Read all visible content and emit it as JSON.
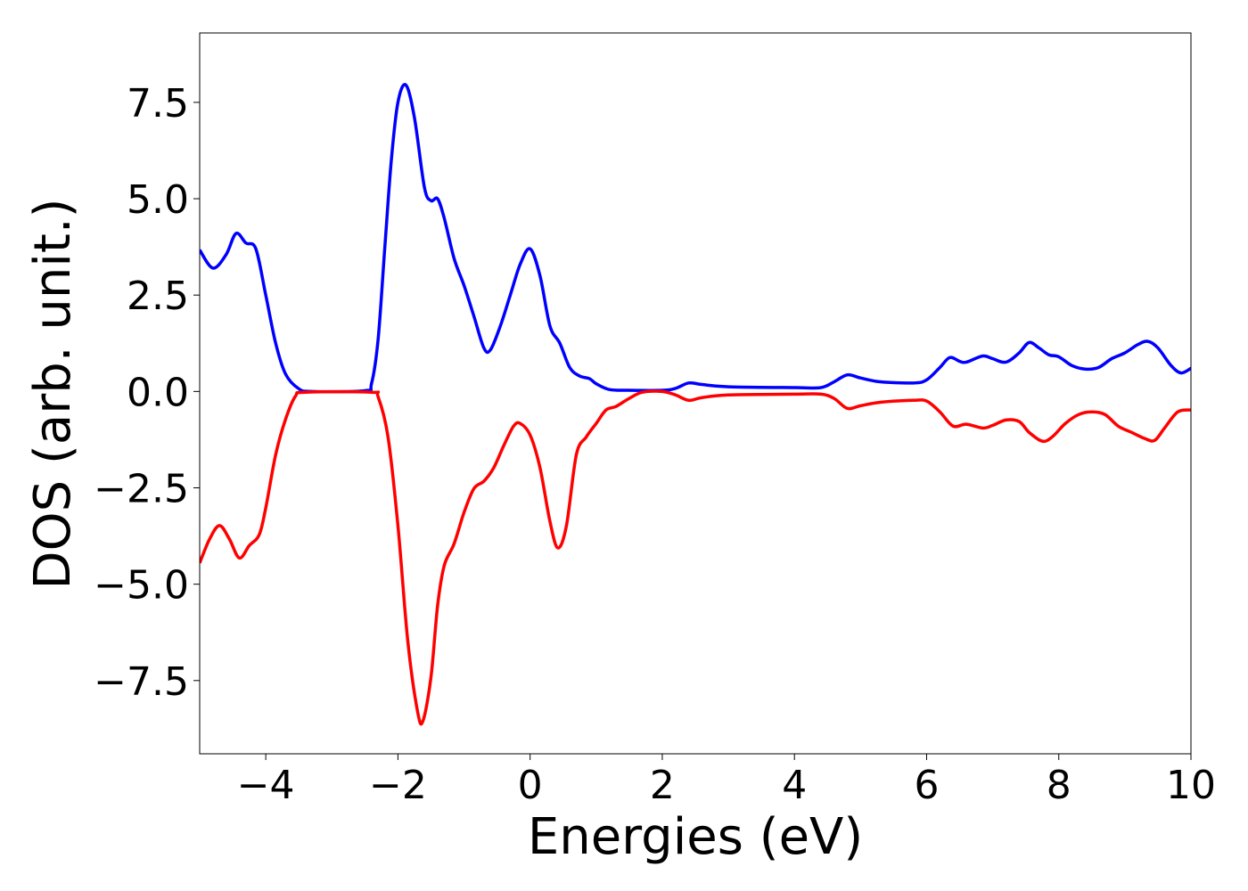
{
  "chart_data": {
    "type": "line",
    "xlabel": "Energies (eV)",
    "ylabel": "DOS (arb. unit.)",
    "xlim": [
      -5,
      10
    ],
    "ylim": [
      -9.4,
      9.3
    ],
    "xticks": [
      {
        "value": -4,
        "label": "−4"
      },
      {
        "value": -2,
        "label": "−2"
      },
      0,
      2,
      4,
      6,
      8,
      10
    ],
    "yticks": [
      {
        "value": -7.5,
        "label": "−7.5"
      },
      {
        "value": -5,
        "label": "−5.0"
      },
      {
        "value": -2.5,
        "label": "−2.5"
      },
      {
        "value": 0,
        "label": "0.0"
      },
      2.5,
      {
        "value": 5,
        "label": "5.0"
      },
      7.5
    ],
    "grid": false,
    "series": [
      {
        "color": "#0000ff",
        "x": [
          -5,
          -4.8,
          -4.6,
          -4.45,
          -4.3,
          -4.15,
          -4.0,
          -3.85,
          -3.7,
          -3.5,
          -3.3,
          -2.5,
          -2.4,
          -2.3,
          -2.2,
          -2.1,
          -2.0,
          -1.88,
          -1.75,
          -1.6,
          -1.5,
          -1.4,
          -1.3,
          -1.15,
          -1.0,
          -0.85,
          -0.7,
          -0.6,
          -0.45,
          -0.3,
          -0.15,
          0.0,
          0.15,
          0.3,
          0.45,
          0.6,
          0.75,
          0.9,
          1.0,
          1.2,
          1.5,
          2.0,
          2.2,
          2.4,
          2.6,
          3.0,
          4.0,
          4.4,
          4.6,
          4.8,
          5.0,
          5.3,
          5.8,
          6.0,
          6.2,
          6.35,
          6.5,
          6.6,
          6.85,
          7.0,
          7.2,
          7.4,
          7.55,
          7.7,
          7.85,
          8.0,
          8.2,
          8.4,
          8.6,
          8.8,
          9.0,
          9.2,
          9.35,
          9.5,
          9.7,
          9.85,
          10.0
        ],
        "values": [
          3.67,
          3.2,
          3.55,
          4.1,
          3.85,
          3.7,
          2.5,
          1.25,
          0.45,
          0.07,
          0,
          0.02,
          0.2,
          1.35,
          3.7,
          6.0,
          7.5,
          7.95,
          7.1,
          5.3,
          4.95,
          5.0,
          4.5,
          3.45,
          2.75,
          1.95,
          1.13,
          1.08,
          1.7,
          2.5,
          3.3,
          3.7,
          3.0,
          1.7,
          1.25,
          0.62,
          0.4,
          0.33,
          0.2,
          0.05,
          0.03,
          0.03,
          0.08,
          0.22,
          0.18,
          0.12,
          0.1,
          0.1,
          0.25,
          0.43,
          0.35,
          0.25,
          0.22,
          0.3,
          0.62,
          0.88,
          0.78,
          0.76,
          0.92,
          0.85,
          0.76,
          1.0,
          1.27,
          1.13,
          0.95,
          0.9,
          0.67,
          0.58,
          0.62,
          0.85,
          1.0,
          1.22,
          1.3,
          1.13,
          0.67,
          0.48,
          0.6
        ]
      },
      {
        "color": "#ff0000",
        "x": [
          -5,
          -4.85,
          -4.7,
          -4.55,
          -4.4,
          -4.25,
          -4.1,
          -4.0,
          -3.85,
          -3.7,
          -3.55,
          -3.4,
          -2.4,
          -2.3,
          -2.15,
          -2.0,
          -1.85,
          -1.7,
          -1.62,
          -1.5,
          -1.4,
          -1.3,
          -1.15,
          -1.0,
          -0.85,
          -0.7,
          -0.55,
          -0.4,
          -0.25,
          -0.15,
          0.0,
          0.15,
          0.3,
          0.42,
          0.55,
          0.7,
          0.85,
          1.0,
          1.15,
          1.3,
          1.5,
          1.7,
          2.0,
          2.2,
          2.4,
          2.6,
          3.0,
          4.0,
          4.4,
          4.6,
          4.8,
          5.0,
          5.3,
          5.8,
          6.0,
          6.2,
          6.4,
          6.6,
          6.85,
          7.0,
          7.2,
          7.4,
          7.55,
          7.75,
          7.9,
          8.1,
          8.3,
          8.5,
          8.7,
          8.9,
          9.1,
          9.3,
          9.45,
          9.6,
          9.8,
          10.0
        ],
        "values": [
          -4.45,
          -3.83,
          -3.48,
          -3.83,
          -4.32,
          -4.0,
          -3.72,
          -3.02,
          -1.64,
          -0.72,
          -0.12,
          -0.02,
          -0.02,
          -0.14,
          -1.18,
          -3.48,
          -6.49,
          -8.33,
          -8.54,
          -7.41,
          -5.56,
          -4.52,
          -3.95,
          -3.14,
          -2.52,
          -2.33,
          -1.98,
          -1.41,
          -0.9,
          -0.83,
          -1.13,
          -1.98,
          -3.37,
          -4.06,
          -3.48,
          -1.64,
          -1.18,
          -0.83,
          -0.48,
          -0.39,
          -0.18,
          -0.02,
          0,
          -0.09,
          -0.23,
          -0.16,
          -0.09,
          -0.07,
          -0.07,
          -0.18,
          -0.44,
          -0.37,
          -0.28,
          -0.23,
          -0.25,
          -0.53,
          -0.9,
          -0.85,
          -0.95,
          -0.88,
          -0.74,
          -0.78,
          -1.06,
          -1.29,
          -1.18,
          -0.83,
          -0.6,
          -0.53,
          -0.6,
          -0.9,
          -1.06,
          -1.22,
          -1.27,
          -0.95,
          -0.53,
          -0.48
        ]
      }
    ]
  }
}
